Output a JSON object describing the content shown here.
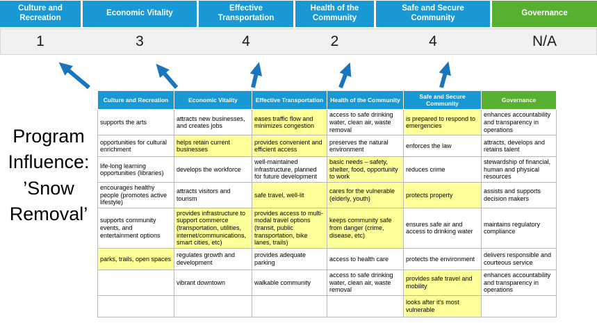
{
  "colors": {
    "header_blue": "#1898D5",
    "header_green": "#58B030",
    "highlight_yellow": "#FFFF99",
    "score_band_gray": "#F1F1F1",
    "arrow_blue": "#1B75BC"
  },
  "title": {
    "text": "Program Influence: ’Snow Removal’",
    "lines": [
      "Program",
      "Influence:",
      "’Snow",
      "Removal’"
    ]
  },
  "summary": {
    "columns": [
      {
        "label": "Culture and Recreation",
        "score": "1",
        "type": "blue"
      },
      {
        "label": "Economic Vitality",
        "score": "3",
        "type": "blue"
      },
      {
        "label": "Effective Transportation",
        "score": "4",
        "type": "blue"
      },
      {
        "label": "Health of the Community",
        "score": "2",
        "type": "blue"
      },
      {
        "label": "Safe and Secure Community",
        "score": "4",
        "type": "blue"
      },
      {
        "label": "Governance",
        "score": "N/A",
        "type": "green"
      }
    ]
  },
  "matrix": {
    "headers": [
      {
        "label": "Culture and Recreation",
        "type": "blue"
      },
      {
        "label": "Economic Vitality",
        "type": "blue"
      },
      {
        "label": "Effective Transportation",
        "type": "blue"
      },
      {
        "label": "Health of the Community",
        "type": "blue"
      },
      {
        "label": "Safe and Secure Community",
        "type": "blue"
      },
      {
        "label": "Governance",
        "type": "green"
      }
    ],
    "rows": [
      [
        {
          "text": "supports the arts",
          "highlight": false
        },
        {
          "text": "attracts new businesses, and creates jobs",
          "highlight": false
        },
        {
          "text": "eases traffic flow and minimizes congestion",
          "highlight": true
        },
        {
          "text": "access to safe drinking water, clean air, waste removal",
          "highlight": false
        },
        {
          "text": "is prepared to respond to emergencies",
          "highlight": true
        },
        {
          "text": "enhances accountability and transparency in operations",
          "highlight": false
        }
      ],
      [
        {
          "text": "opportunities for cultural enrichment",
          "highlight": false
        },
        {
          "text": "helps retain current businesses",
          "highlight": true
        },
        {
          "text": "provides convenient and efficient access",
          "highlight": true
        },
        {
          "text": "preserves the natural environment",
          "highlight": false
        },
        {
          "text": "enforces the law",
          "highlight": false
        },
        {
          "text": "attracts, develops and retains talent",
          "highlight": false
        }
      ],
      [
        {
          "text": "life-long learning opportunities (libraries)",
          "highlight": false
        },
        {
          "text": "develops the workforce",
          "highlight": false
        },
        {
          "text": "well-maintained infrastructure, planned for future development",
          "highlight": false
        },
        {
          "text": "basic needs – safety, shelter, food, opportunity to work",
          "highlight": true
        },
        {
          "text": "reduces crime",
          "highlight": false
        },
        {
          "text": "stewardship of financial, human and physical resources",
          "highlight": false
        }
      ],
      [
        {
          "text": "encourages healthy people (promotes active lifestyle)",
          "highlight": false
        },
        {
          "text": "attracts visitors and tourism",
          "highlight": false
        },
        {
          "text": "safe travel, well-lit",
          "highlight": true
        },
        {
          "text": "cares for the vulnerable (elderly, youth)",
          "highlight": true
        },
        {
          "text": "protects property",
          "highlight": true
        },
        {
          "text": "assists and supports decision makers",
          "highlight": false
        }
      ],
      [
        {
          "text": "supports community events, and entertainment options",
          "highlight": false
        },
        {
          "text": "provides infrastructure to support commerce (transportation, utilities, internet/communications, smart cities, etc)",
          "highlight": true
        },
        {
          "text": "provides access to multi-modal travel options (transit, public transportation, bike lanes, trails)",
          "highlight": true
        },
        {
          "text": "keeps community safe from danger (crime, disease, etc)",
          "highlight": true
        },
        {
          "text": "ensures safe air and access to drinking water",
          "highlight": false
        },
        {
          "text": "maintains regulatory compliance",
          "highlight": false
        }
      ],
      [
        {
          "text": "parks, trails, open spaces",
          "highlight": true
        },
        {
          "text": "regulates growth and development",
          "highlight": false
        },
        {
          "text": "provides adequate parking",
          "highlight": false
        },
        {
          "text": "access to health care",
          "highlight": false
        },
        {
          "text": "protects the environment",
          "highlight": false
        },
        {
          "text": "delivers responsible and courteous service",
          "highlight": false
        }
      ],
      [
        {
          "text": "",
          "highlight": false
        },
        {
          "text": "vibrant downtown",
          "highlight": false
        },
        {
          "text": "walkable community",
          "highlight": false
        },
        {
          "text": "access to safe drinking water, clean air, waste removal",
          "highlight": false
        },
        {
          "text": "provides safe travel and mobility",
          "highlight": true
        },
        {
          "text": "enhances accountability and transparency in operations",
          "highlight": false
        }
      ],
      [
        {
          "text": "",
          "highlight": false
        },
        {
          "text": "",
          "highlight": false
        },
        {
          "text": "",
          "highlight": false
        },
        {
          "text": "",
          "highlight": false
        },
        {
          "text": "looks after it's most vulnerable",
          "highlight": true
        },
        {
          "text": "",
          "highlight": false
        }
      ]
    ]
  }
}
